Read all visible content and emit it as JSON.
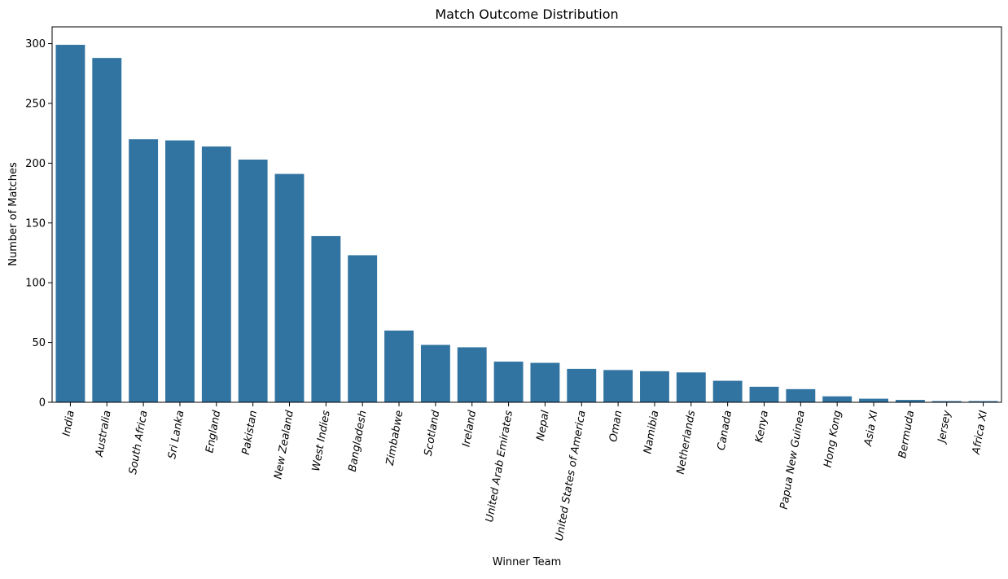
{
  "chart_data": {
    "type": "bar",
    "title": "Match Outcome Distribution",
    "xlabel": "Winner Team",
    "ylabel": "Number of Matches",
    "ylim": [
      0,
      314
    ],
    "yticks": [
      0,
      50,
      100,
      150,
      200,
      250,
      300
    ],
    "grid": false,
    "bar_color": "#3274a1",
    "categories": [
      "India",
      "Australia",
      "South Africa",
      "Sri Lanka",
      "England",
      "Pakistan",
      "New Zealand",
      "West Indies",
      "Bangladesh",
      "Zimbabwe",
      "Scotland",
      "Ireland",
      "United Arab Emirates",
      "Nepal",
      "United States of America",
      "Oman",
      "Namibia",
      "Netherlands",
      "Canada",
      "Kenya",
      "Papua New Guinea",
      "Hong Kong",
      "Asia XI",
      "Bermuda",
      "Jersey",
      "Africa XI"
    ],
    "values": [
      299,
      288,
      220,
      219,
      214,
      203,
      191,
      139,
      123,
      60,
      48,
      46,
      34,
      33,
      28,
      27,
      26,
      25,
      18,
      13,
      11,
      5,
      3,
      2,
      1,
      1
    ]
  }
}
